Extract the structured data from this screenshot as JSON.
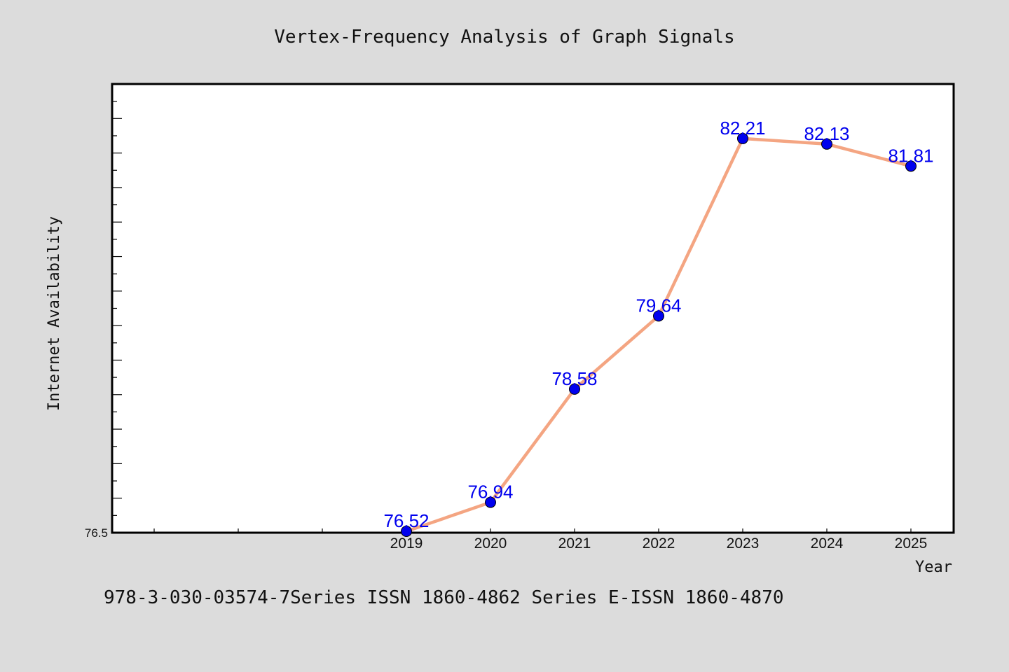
{
  "chart_data": {
    "type": "line",
    "title": "Vertex-Frequency Analysis of Graph Signals",
    "xlabel": "Year",
    "ylabel": "Internet Availability",
    "categories": [
      "2019",
      "2020",
      "2021",
      "2022",
      "2023",
      "2024",
      "2025"
    ],
    "series": [
      {
        "values": [
          76.52,
          76.94,
          78.58,
          79.64,
          82.21,
          82.13,
          81.81
        ],
        "labels": [
          "76.52",
          "76.94",
          "78.58",
          "79.64",
          "82.21",
          "82.13",
          "81.81"
        ],
        "line_color": "#f4a582",
        "marker_color": "#0000ee",
        "label_color": "#0000ee"
      }
    ],
    "x_tick_range": [
      2016,
      2025
    ],
    "ylim": [
      76.5,
      83.0
    ],
    "y_tick_labels": [
      "76.5"
    ],
    "grid": false,
    "legend": "none"
  },
  "footnote": "978-3-030-03574-7Series ISSN 1860-4862 Series E-ISSN 1860-4870",
  "colors": {
    "background": "#dcdcdc",
    "plot_background": "#ffffff",
    "axis": "#000000"
  }
}
